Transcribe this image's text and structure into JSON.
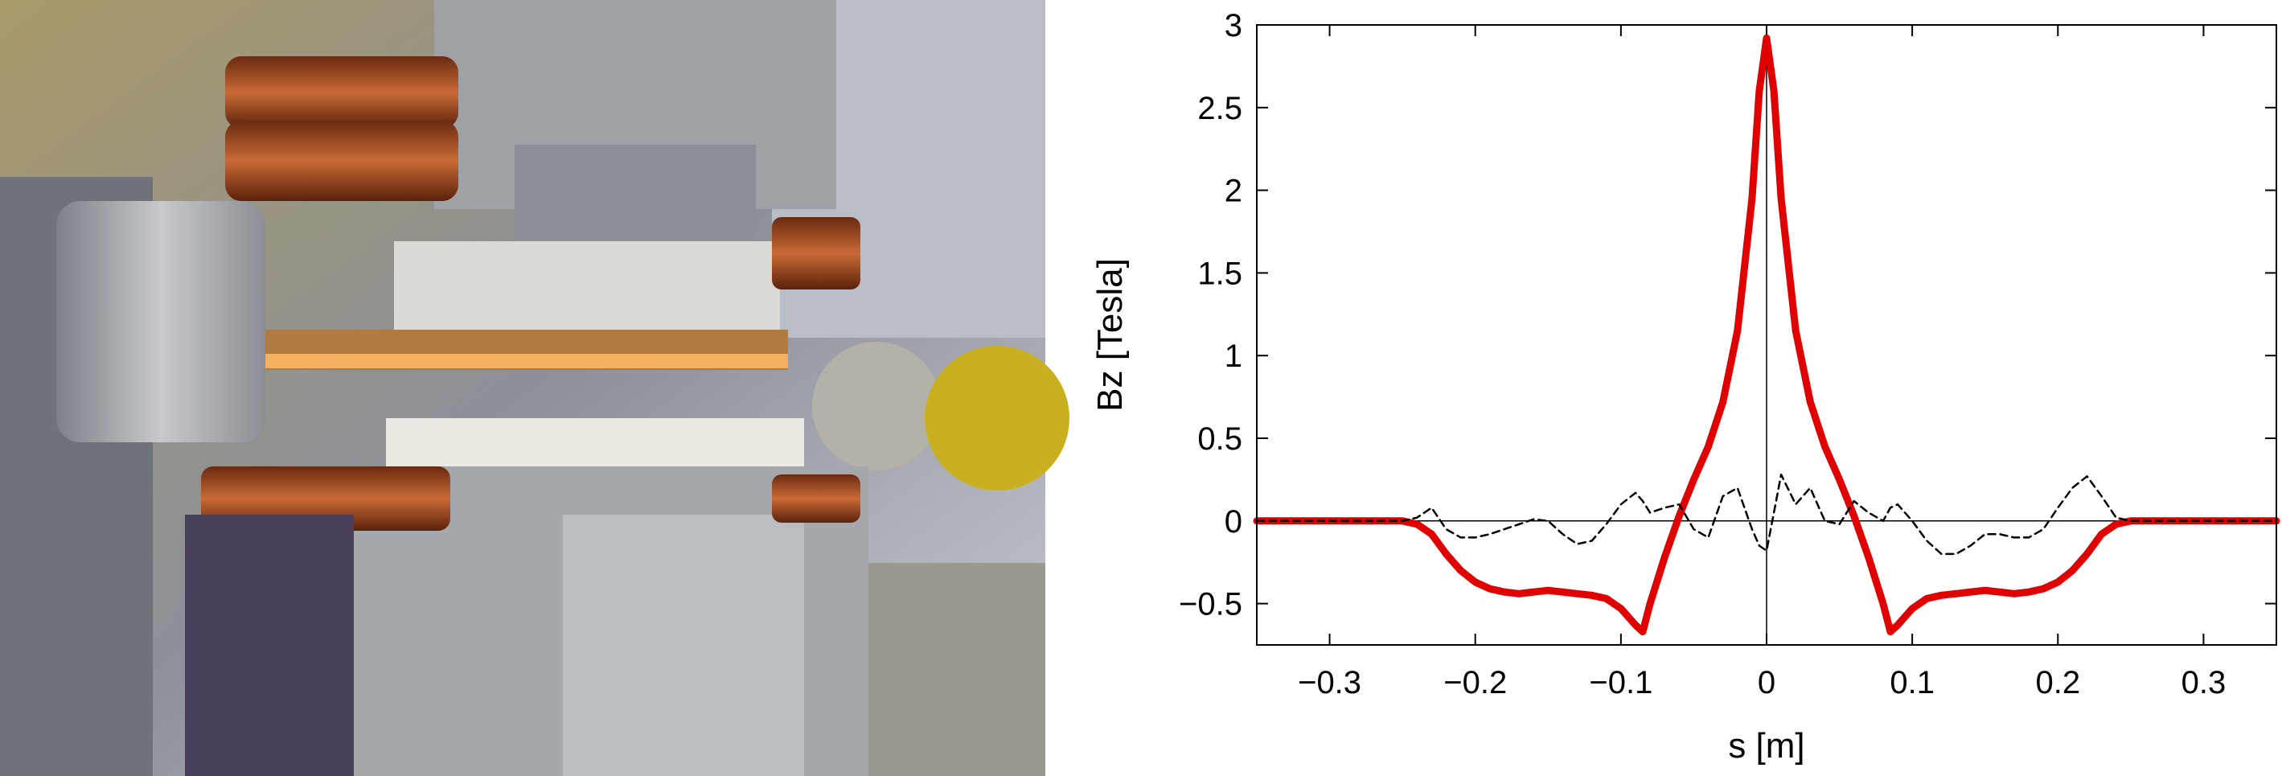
{
  "chart_data": {
    "type": "line",
    "x": [
      -0.35,
      -0.34,
      -0.33,
      -0.32,
      -0.31,
      -0.3,
      -0.29,
      -0.28,
      -0.27,
      -0.26,
      -0.25,
      -0.24,
      -0.23,
      -0.22,
      -0.21,
      -0.2,
      -0.19,
      -0.18,
      -0.17,
      -0.16,
      -0.15,
      -0.14,
      -0.13,
      -0.12,
      -0.11,
      -0.1,
      -0.09,
      -0.085,
      -0.08,
      -0.07,
      -0.06,
      -0.05,
      -0.04,
      -0.03,
      -0.02,
      -0.01,
      -0.005,
      0,
      0.005,
      0.01,
      0.02,
      0.03,
      0.04,
      0.05,
      0.06,
      0.07,
      0.08,
      0.085,
      0.09,
      0.1,
      0.11,
      0.12,
      0.13,
      0.14,
      0.15,
      0.16,
      0.17,
      0.18,
      0.19,
      0.2,
      0.21,
      0.22,
      0.23,
      0.24,
      0.25,
      0.26,
      0.27,
      0.28,
      0.29,
      0.3,
      0.31,
      0.32,
      0.33,
      0.34,
      0.35
    ],
    "series": [
      {
        "color": "#e00000",
        "line_width": 9,
        "values": [
          0,
          0,
          0,
          0,
          0,
          0,
          0,
          0,
          0,
          0,
          0,
          -0.02,
          -0.08,
          -0.2,
          -0.3,
          -0.37,
          -0.41,
          -0.43,
          -0.44,
          -0.43,
          -0.42,
          -0.43,
          -0.44,
          -0.45,
          -0.47,
          -0.53,
          -0.63,
          -0.67,
          -0.5,
          -0.22,
          0.03,
          0.25,
          0.45,
          0.72,
          1.15,
          1.95,
          2.6,
          2.92,
          2.6,
          1.95,
          1.15,
          0.72,
          0.45,
          0.25,
          0.03,
          -0.22,
          -0.5,
          -0.67,
          -0.63,
          -0.53,
          -0.47,
          -0.45,
          -0.44,
          -0.43,
          -0.42,
          -0.43,
          -0.44,
          -0.43,
          -0.41,
          -0.37,
          -0.3,
          -0.2,
          -0.08,
          -0.02,
          0,
          0,
          0,
          0,
          0,
          0,
          0,
          0,
          0,
          0,
          0
        ]
      },
      {
        "color": "#000000",
        "line_width": 2.5,
        "dashed": true,
        "values": [
          0,
          0,
          0,
          0,
          0,
          0,
          0,
          0,
          0,
          0,
          0,
          0.02,
          0.08,
          -0.05,
          -0.1,
          -0.1,
          -0.08,
          -0.05,
          -0.02,
          0.01,
          0,
          -0.08,
          -0.14,
          -0.12,
          -0.02,
          0.1,
          0.17,
          0.12,
          0.05,
          0.08,
          0.1,
          -0.05,
          -0.1,
          0.15,
          0.2,
          -0.05,
          -0.15,
          -0.18,
          0.05,
          0.28,
          0.1,
          0.2,
          0,
          -0.02,
          0.12,
          0.05,
          0,
          0.08,
          0.1,
          0,
          -0.12,
          -0.2,
          -0.2,
          -0.15,
          -0.08,
          -0.08,
          -0.1,
          -0.1,
          -0.05,
          0.08,
          0.2,
          0.27,
          0.15,
          0.02,
          0,
          0,
          0,
          0,
          0,
          0,
          0,
          0,
          0,
          0,
          0
        ]
      }
    ],
    "xlim": [
      -0.35,
      0.35
    ],
    "ylim": [
      -0.75,
      3
    ],
    "xticks": [
      {
        "value": -0.3,
        "label": "−0.3"
      },
      {
        "value": -0.2,
        "label": "−0.2"
      },
      {
        "value": -0.1,
        "label": "−0.1"
      },
      0,
      0.1,
      0.2,
      0.3
    ],
    "yticks": [
      {
        "value": -0.5,
        "label": "−0.5"
      },
      0,
      0.5,
      1,
      1.5,
      2,
      2.5,
      3
    ],
    "xlabel": "s [m]",
    "ylabel": "Bz [Tesla]",
    "zero_lines": true
  }
}
